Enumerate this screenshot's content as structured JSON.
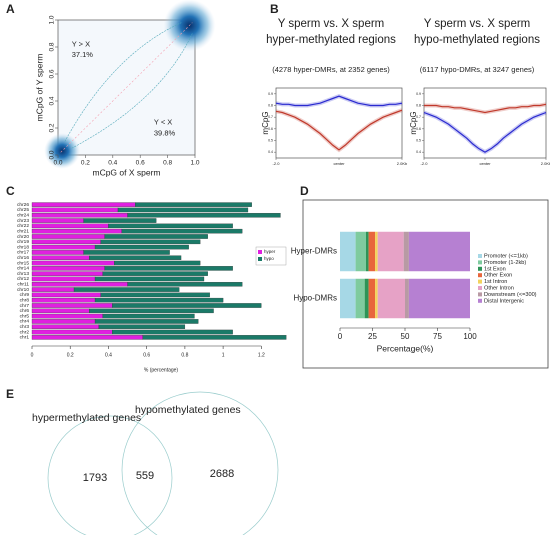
{
  "chart_data": [
    {
      "panel": "A",
      "type": "density",
      "xlabel": "mCpG of X sperm",
      "ylabel": "mCpG of Y sperm",
      "xlim": [
        0,
        1
      ],
      "ylim": [
        0,
        1
      ],
      "xticks": [
        {
          "value": 0,
          "label": "0.0"
        },
        0.2,
        0.4,
        0.6,
        0.8,
        {
          "value": 1,
          "label": "1.0"
        }
      ],
      "yticks": [
        {
          "value": 0,
          "label": "0.0"
        },
        0.2,
        0.4,
        0.6,
        0.8,
        {
          "value": 1,
          "label": "1.0"
        }
      ],
      "annotations": [
        "Y > X",
        "37.1%",
        "Y < X",
        "39.8%"
      ]
    },
    {
      "panel": "B",
      "type": "line",
      "title": [
        "Y sperm vs. X sperm",
        "hyper-methylated regions"
      ],
      "subtitle": "(4278 hyper-DMRs, at 2352 genes)",
      "ylabel": "mCpG",
      "xlim": [
        -2,
        2
      ],
      "ylim": [
        0.35,
        0.95
      ],
      "xticks": [
        {
          "value": -2,
          "label": "-2.0"
        },
        {
          "value": 0,
          "label": "center"
        },
        {
          "value": 2,
          "label": "2.0Kb"
        }
      ],
      "yticks": [
        0.4,
        0.5,
        0.6,
        0.7,
        0.8,
        0.9
      ],
      "x": [
        -2,
        -1.8,
        -1.6,
        -1.4,
        -1.2,
        -1,
        -0.8,
        -0.6,
        -0.4,
        -0.2,
        0,
        0.2,
        0.4,
        0.6,
        0.8,
        1,
        1.2,
        1.4,
        1.6,
        1.8,
        2
      ],
      "series": [
        {
          "color": "#c0392b",
          "values": [
            0.75,
            0.74,
            0.72,
            0.7,
            0.67,
            0.64,
            0.6,
            0.56,
            0.51,
            0.46,
            0.42,
            0.46,
            0.51,
            0.56,
            0.6,
            0.64,
            0.67,
            0.7,
            0.72,
            0.74,
            0.76
          ]
        },
        {
          "color": "#2a2ad0",
          "values": [
            0.82,
            0.81,
            0.81,
            0.8,
            0.8,
            0.8,
            0.81,
            0.82,
            0.84,
            0.86,
            0.88,
            0.86,
            0.84,
            0.82,
            0.81,
            0.8,
            0.8,
            0.8,
            0.81,
            0.81,
            0.82
          ]
        }
      ]
    },
    {
      "type": "line",
      "title": [
        "Y sperm vs. X sperm",
        "hypo-methylated regions"
      ],
      "subtitle": "(6117 hypo-DMRs, at 3247 genes)",
      "ylabel": "mCpG",
      "xlim": [
        -2,
        2
      ],
      "ylim": [
        0.35,
        0.95
      ],
      "xticks": [
        {
          "value": -2,
          "label": "-2.0"
        },
        {
          "value": 0,
          "label": "center"
        },
        {
          "value": 2,
          "label": "2.0Kb"
        }
      ],
      "yticks": [
        0.4,
        0.5,
        0.6,
        0.7,
        0.8,
        0.9
      ],
      "x": [
        -2,
        -1.8,
        -1.6,
        -1.4,
        -1.2,
        -1,
        -0.8,
        -0.6,
        -0.4,
        -0.2,
        0,
        0.2,
        0.4,
        0.6,
        0.8,
        1,
        1.2,
        1.4,
        1.6,
        1.8,
        2
      ],
      "series": [
        {
          "color": "#c0392b",
          "values": [
            0.8,
            0.8,
            0.8,
            0.79,
            0.79,
            0.78,
            0.78,
            0.77,
            0.76,
            0.75,
            0.74,
            0.75,
            0.76,
            0.77,
            0.78,
            0.78,
            0.79,
            0.79,
            0.8,
            0.8,
            0.81
          ]
        },
        {
          "color": "#2a2ad0",
          "values": [
            0.74,
            0.72,
            0.7,
            0.67,
            0.64,
            0.6,
            0.56,
            0.52,
            0.47,
            0.43,
            0.4,
            0.43,
            0.47,
            0.52,
            0.56,
            0.6,
            0.64,
            0.67,
            0.7,
            0.72,
            0.74
          ]
        }
      ]
    },
    {
      "panel": "C",
      "type": "bar",
      "orientation": "horizontal",
      "stacked": true,
      "xlabel": "% (percentage)",
      "xlim": [
        0,
        1.35
      ],
      "xticks": [
        0,
        0.2,
        0.4,
        0.6,
        0.8,
        1,
        1.2
      ],
      "legend": "right",
      "categories": [
        "chr26",
        "chr25",
        "chr24",
        "chr23",
        "chr22",
        "chr21",
        "chr20",
        "chr19",
        "chr18",
        "chr17",
        "chr16",
        "chr15",
        "chr14",
        "chr13",
        "chr12",
        "chr11",
        "chr10",
        "chr9",
        "chr8",
        "chr7",
        "chr6",
        "chr5",
        "chr4",
        "chr3",
        "chr2",
        "chr1"
      ],
      "series": [
        {
          "name": "hyper",
          "color": "#e020e0",
          "values": [
            0.54,
            0.45,
            0.5,
            0.27,
            0.4,
            0.47,
            0.38,
            0.36,
            0.33,
            0.27,
            0.3,
            0.43,
            0.38,
            0.37,
            0.33,
            0.5,
            0.22,
            0.36,
            0.33,
            0.42,
            0.3,
            0.37,
            0.33,
            0.35,
            0.42,
            0.58
          ]
        },
        {
          "name": "hypo",
          "color": "#1b7a68",
          "values": [
            0.61,
            0.68,
            0.8,
            0.38,
            0.65,
            0.63,
            0.54,
            0.52,
            0.49,
            0.45,
            0.48,
            0.45,
            0.67,
            0.55,
            0.57,
            0.6,
            0.55,
            0.57,
            0.67,
            0.78,
            0.65,
            0.48,
            0.54,
            0.45,
            0.63,
            0.75
          ]
        }
      ]
    },
    {
      "panel": "D",
      "type": "bar",
      "orientation": "horizontal",
      "stacked": true,
      "xlabel": "Percentage(%)",
      "xlim": [
        0,
        100
      ],
      "xticks": [
        0,
        25,
        50,
        75,
        100
      ],
      "legend": "right",
      "categories": [
        "Hyper-DMRs",
        "Hypo-DMRs"
      ],
      "series": [
        {
          "name": "Promoter (<=1kb)",
          "color": "#a6d8e6",
          "values": [
            12,
            12
          ]
        },
        {
          "name": "Promoter (1-2kb)",
          "color": "#7fcb9f",
          "values": [
            8,
            7
          ]
        },
        {
          "name": "1st Exon",
          "color": "#2e9457",
          "values": [
            2,
            3
          ]
        },
        {
          "name": "Other Exon",
          "color": "#e8663c",
          "values": [
            5,
            5
          ]
        },
        {
          "name": "1st Intron",
          "color": "#f3d35c",
          "values": [
            2,
            2
          ]
        },
        {
          "name": "Other Intron",
          "color": "#e6a2c6",
          "values": [
            20,
            21
          ]
        },
        {
          "name": "Downstream (<=300)",
          "color": "#b89aa4",
          "values": [
            4,
            3
          ]
        },
        {
          "name": "Distal Intergenic",
          "color": "#b680d2",
          "values": [
            47,
            47
          ]
        }
      ]
    },
    {
      "panel": "E",
      "type": "venn",
      "sets": [
        "hypermethylated genes",
        "hypomethylated genes"
      ],
      "values": [
        1793,
        559,
        2688
      ]
    }
  ]
}
